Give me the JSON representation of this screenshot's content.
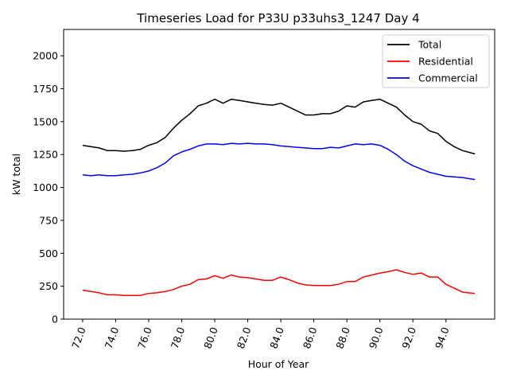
{
  "chart_data": {
    "type": "line",
    "title": "Timeseries Load for P33U p33uhs3_1247  Day 4",
    "xlabel": "Hour of Year",
    "ylabel": "kW total",
    "xlim": [
      70.85,
      96.95
    ],
    "ylim": [
      0,
      2200
    ],
    "x_ticks": [
      72,
      74,
      76,
      78,
      80,
      82,
      84,
      86,
      88,
      90,
      92,
      94
    ],
    "x_tick_labels": [
      "72.0",
      "74.0",
      "76.0",
      "78.0",
      "80.0",
      "82.0",
      "84.0",
      "86.0",
      "88.0",
      "90.0",
      "92.0",
      "94.0"
    ],
    "y_ticks": [
      0,
      250,
      500,
      750,
      1000,
      1250,
      1500,
      1750,
      2000
    ],
    "y_tick_labels": [
      "0",
      "250",
      "500",
      "750",
      "1000",
      "1250",
      "1500",
      "1750",
      "2000"
    ],
    "grid": false,
    "legend_position": "top-right",
    "series": [
      {
        "name": "Total",
        "color": "#000000",
        "x": [
          72.0,
          72.5,
          73.0,
          73.5,
          74.0,
          74.5,
          75.0,
          75.5,
          76.0,
          76.5,
          77.0,
          77.5,
          78.0,
          78.5,
          79.0,
          79.5,
          80.0,
          80.5,
          81.0,
          81.5,
          82.0,
          82.5,
          83.0,
          83.5,
          84.0,
          84.5,
          85.0,
          85.5,
          86.0,
          86.5,
          87.0,
          87.5,
          88.0,
          88.5,
          89.0,
          89.5,
          90.0,
          90.5,
          91.0,
          91.5,
          92.0,
          92.5,
          93.0,
          93.5,
          94.0,
          94.5,
          95.0,
          95.75
        ],
        "values": [
          1320,
          1310,
          1300,
          1280,
          1280,
          1275,
          1280,
          1290,
          1320,
          1340,
          1380,
          1450,
          1510,
          1560,
          1620,
          1640,
          1670,
          1640,
          1670,
          1660,
          1650,
          1640,
          1630,
          1625,
          1640,
          1610,
          1580,
          1550,
          1550,
          1560,
          1560,
          1580,
          1620,
          1610,
          1650,
          1660,
          1670,
          1640,
          1610,
          1550,
          1500,
          1480,
          1430,
          1410,
          1350,
          1310,
          1280,
          1255
        ]
      },
      {
        "name": "Residential",
        "color": "#ff0000",
        "x": [
          72.0,
          72.5,
          73.0,
          73.5,
          74.0,
          74.5,
          75.0,
          75.5,
          76.0,
          76.5,
          77.0,
          77.5,
          78.0,
          78.5,
          79.0,
          79.5,
          80.0,
          80.5,
          81.0,
          81.5,
          82.0,
          82.5,
          83.0,
          83.5,
          84.0,
          84.5,
          85.0,
          85.5,
          86.0,
          86.5,
          87.0,
          87.5,
          88.0,
          88.5,
          89.0,
          89.5,
          90.0,
          90.5,
          91.0,
          91.5,
          92.0,
          92.5,
          93.0,
          93.5,
          94.0,
          94.5,
          95.0,
          95.75
        ],
        "values": [
          220,
          210,
          200,
          185,
          185,
          180,
          180,
          180,
          195,
          200,
          210,
          225,
          250,
          265,
          300,
          305,
          330,
          310,
          335,
          320,
          315,
          305,
          295,
          295,
          320,
          300,
          275,
          260,
          255,
          255,
          255,
          265,
          285,
          285,
          320,
          335,
          350,
          360,
          375,
          355,
          340,
          350,
          320,
          320,
          265,
          235,
          205,
          195
        ]
      },
      {
        "name": "Commercial",
        "color": "#0000ff",
        "x": [
          72.0,
          72.5,
          73.0,
          73.5,
          74.0,
          74.5,
          75.0,
          75.5,
          76.0,
          76.5,
          77.0,
          77.5,
          78.0,
          78.5,
          79.0,
          79.5,
          80.0,
          80.5,
          81.0,
          81.5,
          82.0,
          82.5,
          83.0,
          83.5,
          84.0,
          84.5,
          85.0,
          85.5,
          86.0,
          86.5,
          87.0,
          87.5,
          88.0,
          88.5,
          89.0,
          89.5,
          90.0,
          90.5,
          91.0,
          91.5,
          92.0,
          92.5,
          93.0,
          93.5,
          94.0,
          94.5,
          95.0,
          95.75
        ],
        "values": [
          1095,
          1090,
          1095,
          1090,
          1090,
          1095,
          1100,
          1110,
          1125,
          1150,
          1185,
          1240,
          1270,
          1290,
          1315,
          1330,
          1330,
          1325,
          1335,
          1330,
          1335,
          1330,
          1330,
          1325,
          1315,
          1310,
          1305,
          1300,
          1295,
          1295,
          1305,
          1300,
          1315,
          1330,
          1325,
          1330,
          1320,
          1290,
          1250,
          1200,
          1165,
          1140,
          1115,
          1100,
          1085,
          1080,
          1075,
          1060
        ]
      }
    ]
  }
}
